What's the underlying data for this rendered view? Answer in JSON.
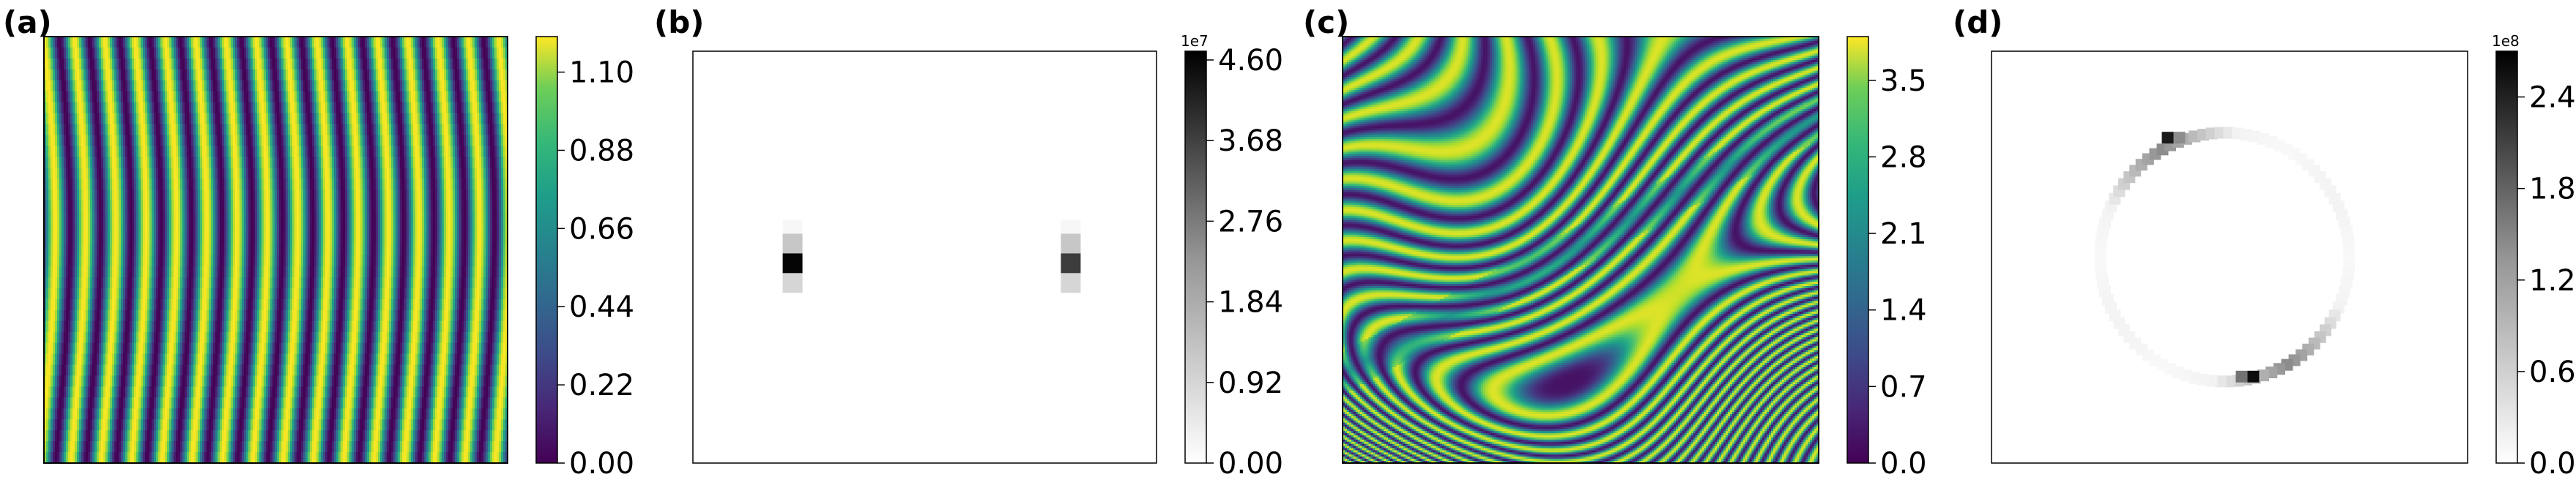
{
  "chart_data": [
    {
      "type": "heatmap",
      "panel_label": "(a)",
      "pattern": "stripes",
      "colormap": "viridis",
      "description": "",
      "colorbar": {
        "ticks": [
          "0.00",
          "0.22",
          "0.44",
          "0.66",
          "0.88",
          "1.10"
        ],
        "min": 0.0,
        "max": 1.2,
        "multiplier": ""
      }
    },
    {
      "type": "heatmap",
      "panel_label": "(b)",
      "pattern": "spectrum-peaks",
      "colormap": "Greys",
      "peaks": [
        {
          "fx": 0.215,
          "fy": 0.515,
          "value": 46000000.0
        },
        {
          "fx": 0.815,
          "fy": 0.515,
          "value": 36000000.0
        }
      ],
      "colorbar": {
        "ticks": [
          "0.00",
          "0.92",
          "1.84",
          "2.76",
          "3.68",
          "4.60"
        ],
        "min": 0.0,
        "max": 4.7,
        "multiplier": "1e7"
      }
    },
    {
      "type": "heatmap",
      "panel_label": "(c)",
      "pattern": "labyrinth",
      "colormap": "viridis",
      "colorbar": {
        "ticks": [
          "0.0",
          "0.7",
          "1.4",
          "2.1",
          "2.8",
          "3.5"
        ],
        "min": 0.0,
        "max": 3.9,
        "multiplier": ""
      }
    },
    {
      "type": "heatmap",
      "panel_label": "(d)",
      "pattern": "spectrum-ring",
      "colormap": "Greys",
      "colorbar": {
        "ticks": [
          "0.0",
          "0.6",
          "1.2",
          "1.8",
          "2.4"
        ],
        "min": 0.0,
        "max": 2.7,
        "multiplier": "1e8"
      }
    }
  ]
}
